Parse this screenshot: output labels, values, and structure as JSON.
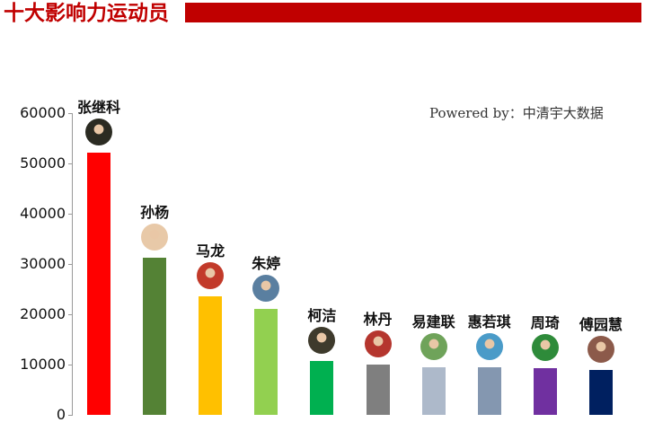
{
  "header": {
    "title": "十大影响力运动员",
    "banner_color": "#c00000"
  },
  "watermark": "Powered by：中清宇大数据",
  "chart_data": {
    "type": "bar",
    "title": "十大影响力运动员",
    "xlabel": "",
    "ylabel": "",
    "ylim": [
      0,
      60000
    ],
    "yticks": [
      0,
      10000,
      20000,
      30000,
      40000,
      50000,
      60000
    ],
    "grid": false,
    "legend": "none",
    "categories": [
      "张继科",
      "孙杨",
      "马龙",
      "朱婷",
      "柯洁",
      "林丹",
      "易建联",
      "惠若琪",
      "周琦",
      "傅园慧"
    ],
    "values": [
      52100,
      31200,
      23600,
      21100,
      10700,
      10000,
      9500,
      9500,
      9300,
      8900
    ],
    "colors": [
      "#ff0000",
      "#548235",
      "#ffc000",
      "#92d050",
      "#00b050",
      "#7f7f7f",
      "#adb9ca",
      "#8497b0",
      "#7030a0",
      "#002060"
    ],
    "annotations": "Each bar labeled with athlete name and circular avatar photo above it"
  },
  "yaxis": {
    "labels": [
      "60000",
      "50000",
      "40000",
      "30000",
      "20000",
      "10000",
      "0"
    ]
  },
  "athletes": [
    {
      "name": "张继科",
      "avatar_color": "#2b2b22"
    },
    {
      "name": "孙杨",
      "avatar_color": "#e8c9a8"
    },
    {
      "name": "马龙",
      "avatar_color": "#c23a2a"
    },
    {
      "name": "朱婷",
      "avatar_color": "#5a7fa0"
    },
    {
      "name": "柯洁",
      "avatar_color": "#3e3a2c"
    },
    {
      "name": "林丹",
      "avatar_color": "#b5362e"
    },
    {
      "name": "易建联",
      "avatar_color": "#6fa35a"
    },
    {
      "name": "惠若琪",
      "avatar_color": "#4a9bc8"
    },
    {
      "name": "周琦",
      "avatar_color": "#2e8b3a"
    },
    {
      "name": "傅园慧",
      "avatar_color": "#8c5a4a"
    }
  ]
}
